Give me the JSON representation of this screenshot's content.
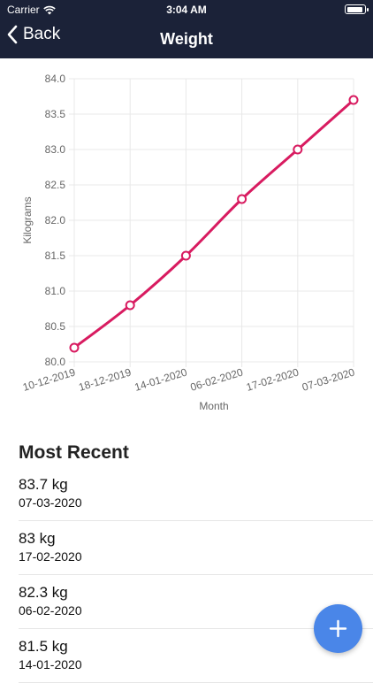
{
  "status": {
    "carrier": "Carrier",
    "time": "3:04 AM"
  },
  "nav": {
    "back_label": "Back",
    "title": "Weight"
  },
  "chart_data": {
    "type": "line",
    "categories": [
      "10-12-2019",
      "18-12-2019",
      "14-01-2020",
      "06-02-2020",
      "17-02-2020",
      "07-03-2020"
    ],
    "series": [
      {
        "values": [
          80.2,
          80.8,
          81.5,
          82.3,
          83.0,
          83.7
        ]
      }
    ],
    "title": "",
    "xlabel": "Month",
    "ylabel": "Kilograms",
    "ylim": [
      80.0,
      84.0
    ],
    "yticks": [
      "80.0",
      "80.5",
      "81.0",
      "81.5",
      "82.0",
      "82.5",
      "83.0",
      "83.5",
      "84.0"
    ],
    "grid": true,
    "line_color": "#d81b60"
  },
  "recent": {
    "title": "Most Recent",
    "items": [
      {
        "weight": "83.7 kg",
        "date": "07-03-2020"
      },
      {
        "weight": "83 kg",
        "date": "17-02-2020"
      },
      {
        "weight": "82.3 kg",
        "date": "06-02-2020"
      },
      {
        "weight": "81.5 kg",
        "date": "14-01-2020"
      }
    ]
  },
  "colors": {
    "nav_bg": "#1b2238",
    "fab": "#4a86e8",
    "accent": "#d81b60"
  },
  "icons": {
    "back": "chevron-left-icon",
    "add": "plus-icon",
    "wifi": "wifi-icon",
    "battery": "battery-icon"
  }
}
